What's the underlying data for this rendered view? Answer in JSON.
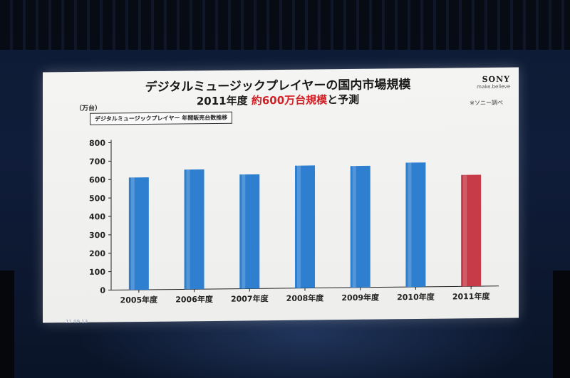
{
  "slide": {
    "title": "デジタルミュージックプレイヤーの国内市場規模",
    "subtitle_prefix": "2011年度",
    "subtitle_highlight": "約600万台規模",
    "subtitle_suffix": "と予測",
    "brand": "SONY",
    "brand_tagline": "make.believe",
    "source": "※ソニー調べ",
    "unit": "（万台）",
    "legend": "デジタルミュージックプレイヤー 年間販売台数推移",
    "date_stamp": "11.09.13"
  },
  "chart_data": {
    "type": "bar",
    "title": "デジタルミュージックプレイヤーの国内市場規模",
    "categories": [
      "2005年度",
      "2006年度",
      "2007年度",
      "2008年度",
      "2009年度",
      "2010年度",
      "2011年度"
    ],
    "series": [
      {
        "name": "デジタルミュージックプレイヤー 年間販売台数推移",
        "values": [
          610,
          650,
          620,
          665,
          660,
          675,
          605
        ]
      }
    ],
    "ylim": [
      0,
      800
    ],
    "yticks": [
      0,
      100,
      200,
      300,
      400,
      500,
      600,
      700,
      800
    ],
    "ylabel": "（万台）",
    "colors": {
      "actual": "#2f7fd0",
      "forecast": "#c63b47"
    },
    "grid": false,
    "legend_position": "top-left"
  }
}
